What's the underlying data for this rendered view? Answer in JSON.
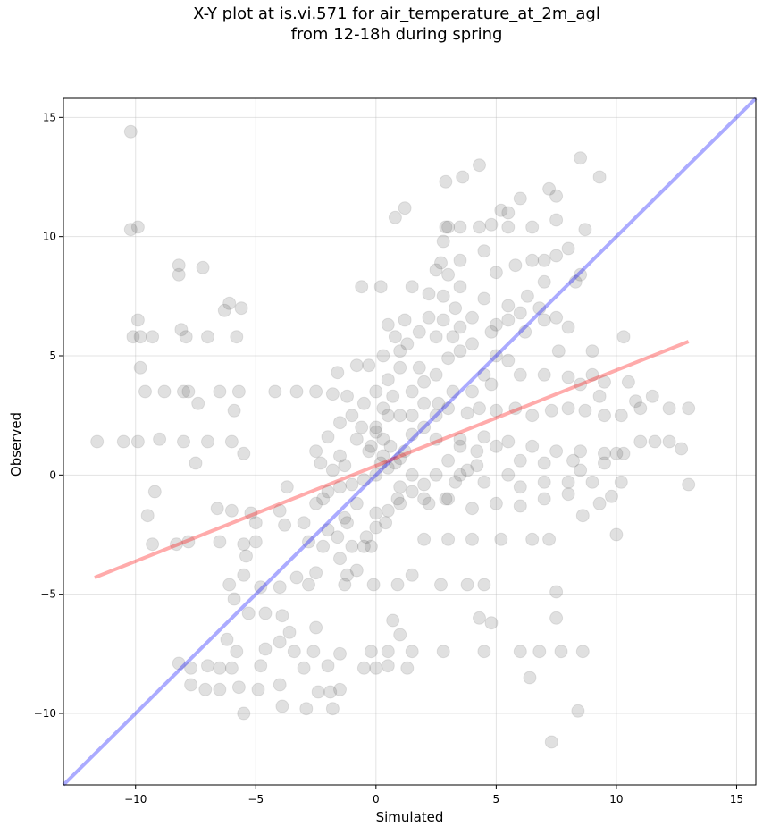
{
  "chart_data": {
    "type": "scatter",
    "title_line1": "X-Y plot at is.vi.571 for air_temperature_at_2m_agl",
    "title_line2": "from 12-18h during spring",
    "xlabel": "Simulated",
    "ylabel": "Observed",
    "xlim": [
      -13,
      15.8
    ],
    "ylim": [
      -13,
      15.8
    ],
    "xticks": [
      -10,
      -5,
      0,
      5,
      10,
      15
    ],
    "yticks": [
      -10,
      -5,
      0,
      5,
      10,
      15
    ],
    "xtick_labels": [
      "−10",
      "−5",
      "0",
      "5",
      "10",
      "15"
    ],
    "ytick_labels": [
      "−10",
      "−5",
      "0",
      "5",
      "10",
      "15"
    ],
    "grid": true,
    "point_color": "#404040",
    "identity_line": {
      "color": "#0000ff",
      "from": [
        -13,
        -13
      ],
      "to": [
        15.8,
        15.8
      ]
    },
    "regression_line": {
      "color": "#ff0000",
      "from": [
        -11.7,
        -4.3
      ],
      "to": [
        13.0,
        5.6
      ]
    },
    "points": [
      [
        -10.2,
        14.4
      ],
      [
        -10.2,
        10.3
      ],
      [
        -9.9,
        10.4
      ],
      [
        -9.9,
        6.5
      ],
      [
        -10.1,
        5.8
      ],
      [
        -9.8,
        5.8
      ],
      [
        -9.3,
        5.8
      ],
      [
        -9.8,
        4.5
      ],
      [
        -9.6,
        3.5
      ],
      [
        -8.8,
        3.5
      ],
      [
        -8.0,
        3.5
      ],
      [
        -7.8,
        3.5
      ],
      [
        -11.6,
        1.4
      ],
      [
        -10.5,
        1.4
      ],
      [
        -9.9,
        1.4
      ],
      [
        -9.0,
        1.5
      ],
      [
        -8.0,
        1.4
      ],
      [
        -7.0,
        1.4
      ],
      [
        -6.0,
        1.4
      ],
      [
        -5.5,
        0.9
      ],
      [
        -7.5,
        0.5
      ],
      [
        -9.5,
        -1.7
      ],
      [
        -9.2,
        -0.7
      ],
      [
        -8.2,
        8.8
      ],
      [
        -8.2,
        8.4
      ],
      [
        -7.2,
        8.7
      ],
      [
        -8.1,
        6.1
      ],
      [
        -6.3,
        6.9
      ],
      [
        -6.1,
        7.2
      ],
      [
        -5.6,
        7.0
      ],
      [
        -7.0,
        5.8
      ],
      [
        -7.9,
        5.8
      ],
      [
        -5.8,
        5.8
      ],
      [
        -6.5,
        3.5
      ],
      [
        -5.9,
        2.7
      ],
      [
        -5.7,
        3.5
      ],
      [
        -4.2,
        3.5
      ],
      [
        -3.3,
        3.5
      ],
      [
        -2.5,
        3.5
      ],
      [
        -7.4,
        3.0
      ],
      [
        -9.3,
        -2.9
      ],
      [
        -8.3,
        -2.9
      ],
      [
        -7.8,
        -2.8
      ],
      [
        -6.5,
        -2.8
      ],
      [
        -5.5,
        -2.9
      ],
      [
        -6.6,
        -1.4
      ],
      [
        -6.0,
        -1.5
      ],
      [
        -5.2,
        -1.6
      ],
      [
        -5.0,
        -2.0
      ],
      [
        -4.0,
        -1.5
      ],
      [
        -3.7,
        -0.5
      ],
      [
        -3.8,
        -2.1
      ],
      [
        -3.0,
        -2.0
      ],
      [
        -5.4,
        -3.4
      ],
      [
        -5.0,
        -2.8
      ],
      [
        -6.1,
        -4.6
      ],
      [
        -5.5,
        -4.2
      ],
      [
        -4.8,
        -4.7
      ],
      [
        -4.0,
        -4.7
      ],
      [
        -3.3,
        -4.3
      ],
      [
        -2.8,
        -4.6
      ],
      [
        -2.5,
        -4.1
      ],
      [
        -5.9,
        -5.2
      ],
      [
        -5.3,
        -5.8
      ],
      [
        -4.6,
        -5.8
      ],
      [
        -3.9,
        -5.9
      ],
      [
        -3.6,
        -6.6
      ],
      [
        -2.5,
        -6.4
      ],
      [
        -6.2,
        -6.9
      ],
      [
        -5.8,
        -7.4
      ],
      [
        -4.6,
        -7.3
      ],
      [
        -4.0,
        -7.0
      ],
      [
        -3.4,
        -7.4
      ],
      [
        -2.6,
        -7.4
      ],
      [
        -8.2,
        -7.9
      ],
      [
        -7.7,
        -8.1
      ],
      [
        -7.0,
        -8.0
      ],
      [
        -6.5,
        -8.1
      ],
      [
        -6.0,
        -8.1
      ],
      [
        -4.8,
        -8.0
      ],
      [
        -3.0,
        -8.1
      ],
      [
        -2.0,
        -8.0
      ],
      [
        -7.7,
        -8.8
      ],
      [
        -7.1,
        -9.0
      ],
      [
        -6.5,
        -9.0
      ],
      [
        -5.7,
        -8.9
      ],
      [
        -5.5,
        -10.0
      ],
      [
        -4.9,
        -9.0
      ],
      [
        -4.0,
        -8.8
      ],
      [
        -3.9,
        -9.7
      ],
      [
        -2.9,
        -9.8
      ],
      [
        -2.4,
        -9.1
      ],
      [
        -1.9,
        -9.1
      ],
      [
        -1.5,
        -9.0
      ],
      [
        -1.8,
        -9.8
      ],
      [
        -0.5,
        -8.1
      ],
      [
        0.0,
        -8.1
      ],
      [
        0.5,
        -8.0
      ],
      [
        1.3,
        -8.1
      ],
      [
        -1.5,
        -7.5
      ],
      [
        -0.2,
        -7.4
      ],
      [
        0.5,
        -7.4
      ],
      [
        1.5,
        -7.4
      ],
      [
        2.8,
        -7.4
      ],
      [
        4.5,
        -7.4
      ],
      [
        6.0,
        -7.4
      ],
      [
        6.8,
        -7.4
      ],
      [
        7.7,
        -7.4
      ],
      [
        8.6,
        -7.4
      ],
      [
        7.3,
        -11.2
      ],
      [
        8.4,
        -9.9
      ],
      [
        6.4,
        -8.5
      ],
      [
        7.5,
        -6.0
      ],
      [
        7.5,
        -4.9
      ],
      [
        6.5,
        -2.7
      ],
      [
        7.2,
        -2.7
      ],
      [
        5.2,
        -2.7
      ],
      [
        3.0,
        -2.7
      ],
      [
        2.0,
        -2.7
      ],
      [
        4.0,
        -2.7
      ],
      [
        1.5,
        -4.2
      ],
      [
        2.7,
        -4.6
      ],
      [
        3.8,
        -4.6
      ],
      [
        4.5,
        -4.6
      ],
      [
        0.9,
        -4.6
      ],
      [
        -0.1,
        -4.6
      ],
      [
        -1.3,
        -4.6
      ],
      [
        0.7,
        -6.1
      ],
      [
        1.0,
        -6.7
      ],
      [
        4.3,
        -6.0
      ],
      [
        4.8,
        -6.2
      ],
      [
        -2.0,
        -2.3
      ],
      [
        -1.6,
        -2.6
      ],
      [
        -1.2,
        -2.0
      ],
      [
        -1.0,
        -3.0
      ],
      [
        -0.4,
        -2.6
      ],
      [
        0.0,
        -1.6
      ],
      [
        -0.8,
        -1.2
      ],
      [
        -1.3,
        -1.8
      ],
      [
        -2.2,
        -1.0
      ],
      [
        -1.5,
        -0.5
      ],
      [
        -1.0,
        -0.4
      ],
      [
        -0.5,
        -0.2
      ],
      [
        0.0,
        0.0
      ],
      [
        0.2,
        0.5
      ],
      [
        0.5,
        0.3
      ],
      [
        0.8,
        0.5
      ],
      [
        1.0,
        0.7
      ],
      [
        1.2,
        1.0
      ],
      [
        0.6,
        1.2
      ],
      [
        0.3,
        1.5
      ],
      [
        0.0,
        2.0
      ],
      [
        0.5,
        2.5
      ],
      [
        1.0,
        2.5
      ],
      [
        1.5,
        2.5
      ],
      [
        2.0,
        2.0
      ],
      [
        2.5,
        2.5
      ],
      [
        3.0,
        2.8
      ],
      [
        1.5,
        3.5
      ],
      [
        2.0,
        3.9
      ],
      [
        2.5,
        4.2
      ],
      [
        3.0,
        4.9
      ],
      [
        3.5,
        5.2
      ],
      [
        2.5,
        5.8
      ],
      [
        3.5,
        6.2
      ],
      [
        4.0,
        6.6
      ],
      [
        3.5,
        7.9
      ],
      [
        2.8,
        7.5
      ],
      [
        2.2,
        7.6
      ],
      [
        1.5,
        7.9
      ],
      [
        0.2,
        7.9
      ],
      [
        -0.6,
        7.9
      ],
      [
        0.5,
        6.3
      ],
      [
        1.0,
        5.2
      ],
      [
        1.2,
        6.5
      ],
      [
        0.5,
        4.0
      ],
      [
        0.0,
        3.5
      ],
      [
        -0.5,
        3.0
      ],
      [
        -1.0,
        2.5
      ],
      [
        -1.5,
        2.2
      ],
      [
        -2.0,
        1.6
      ],
      [
        -2.5,
        1.0
      ],
      [
        -2.3,
        0.5
      ],
      [
        -1.3,
        0.4
      ],
      [
        -0.3,
        1.0
      ],
      [
        1.5,
        1.7
      ],
      [
        2.5,
        1.5
      ],
      [
        3.5,
        1.5
      ],
      [
        4.5,
        1.6
      ],
      [
        5.5,
        1.4
      ],
      [
        6.5,
        1.2
      ],
      [
        7.5,
        1.0
      ],
      [
        8.5,
        1.0
      ],
      [
        9.5,
        0.9
      ],
      [
        10.3,
        0.9
      ],
      [
        11.0,
        1.4
      ],
      [
        11.6,
        1.4
      ],
      [
        12.2,
        1.4
      ],
      [
        12.7,
        1.1
      ],
      [
        13.0,
        2.8
      ],
      [
        13.0,
        -0.4
      ],
      [
        12.2,
        2.8
      ],
      [
        11.5,
        3.3
      ],
      [
        10.8,
        3.1
      ],
      [
        10.2,
        2.5
      ],
      [
        9.5,
        2.5
      ],
      [
        8.7,
        2.7
      ],
      [
        8.0,
        2.8
      ],
      [
        7.3,
        2.7
      ],
      [
        6.5,
        2.5
      ],
      [
        5.8,
        2.8
      ],
      [
        5.0,
        2.7
      ],
      [
        4.3,
        2.8
      ],
      [
        3.8,
        2.6
      ],
      [
        4.8,
        3.8
      ],
      [
        6.0,
        4.2
      ],
      [
        7.0,
        4.2
      ],
      [
        8.0,
        4.1
      ],
      [
        9.0,
        4.2
      ],
      [
        10.3,
        5.8
      ],
      [
        10.5,
        3.9
      ],
      [
        9.3,
        3.3
      ],
      [
        8.5,
        3.8
      ],
      [
        7.6,
        5.2
      ],
      [
        7.0,
        6.5
      ],
      [
        6.2,
        6.0
      ],
      [
        5.0,
        6.3
      ],
      [
        5.5,
        7.1
      ],
      [
        6.3,
        7.5
      ],
      [
        7.0,
        8.1
      ],
      [
        8.3,
        8.1
      ],
      [
        8.5,
        8.4
      ],
      [
        7.5,
        9.2
      ],
      [
        8.0,
        9.5
      ],
      [
        8.7,
        10.3
      ],
      [
        7.5,
        10.7
      ],
      [
        6.5,
        10.4
      ],
      [
        5.5,
        10.4
      ],
      [
        4.8,
        10.5
      ],
      [
        4.3,
        10.4
      ],
      [
        3.5,
        10.4
      ],
      [
        3.0,
        10.4
      ],
      [
        2.8,
        9.8
      ],
      [
        2.7,
        8.9
      ],
      [
        3.5,
        9.0
      ],
      [
        4.5,
        9.4
      ],
      [
        5.0,
        8.5
      ],
      [
        5.8,
        8.8
      ],
      [
        6.5,
        9.0
      ],
      [
        7.0,
        9.0
      ],
      [
        8.5,
        13.3
      ],
      [
        9.3,
        12.5
      ],
      [
        7.2,
        12.0
      ],
      [
        7.5,
        11.7
      ],
      [
        6.0,
        11.6
      ],
      [
        5.5,
        11.0
      ],
      [
        5.2,
        11.1
      ],
      [
        4.3,
        13.0
      ],
      [
        3.6,
        12.5
      ],
      [
        2.9,
        12.3
      ],
      [
        2.9,
        10.4
      ],
      [
        1.2,
        11.2
      ],
      [
        0.8,
        10.8
      ],
      [
        2.5,
        8.6
      ],
      [
        3.0,
        8.4
      ],
      [
        3.3,
        7.0
      ],
      [
        4.5,
        7.4
      ],
      [
        5.0,
        5.0
      ],
      [
        5.5,
        4.8
      ],
      [
        4.5,
        4.2
      ],
      [
        4.0,
        3.5
      ],
      [
        3.2,
        3.5
      ],
      [
        2.6,
        3.0
      ],
      [
        2.0,
        3.0
      ],
      [
        1.8,
        4.5
      ],
      [
        1.0,
        4.5
      ],
      [
        0.7,
        3.3
      ],
      [
        0.3,
        2.8
      ],
      [
        0.0,
        1.8
      ],
      [
        -0.2,
        1.2
      ],
      [
        0.3,
        0.8
      ],
      [
        1.5,
        0.0
      ],
      [
        2.5,
        0.0
      ],
      [
        3.5,
        0.0
      ],
      [
        4.5,
        -0.3
      ],
      [
        5.5,
        0.0
      ],
      [
        6.0,
        -0.5
      ],
      [
        7.0,
        -0.3
      ],
      [
        8.0,
        -0.3
      ],
      [
        8.5,
        0.2
      ],
      [
        9.0,
        -0.3
      ],
      [
        9.8,
        -0.9
      ],
      [
        10.2,
        -0.3
      ],
      [
        10.0,
        -2.5
      ],
      [
        9.3,
        -1.2
      ],
      [
        8.6,
        -1.7
      ],
      [
        8.0,
        -0.8
      ],
      [
        7.0,
        -1.0
      ],
      [
        6.0,
        -1.3
      ],
      [
        5.0,
        -1.2
      ],
      [
        4.0,
        -1.4
      ],
      [
        3.0,
        -1.0
      ],
      [
        2.0,
        -1.0
      ],
      [
        1.0,
        -1.2
      ],
      [
        0.5,
        -1.5
      ],
      [
        0.0,
        -2.2
      ],
      [
        -0.5,
        -3.0
      ],
      [
        1.0,
        -0.5
      ],
      [
        2.0,
        -0.4
      ],
      [
        3.0,
        0.6
      ],
      [
        3.5,
        1.2
      ],
      [
        4.2,
        1.0
      ],
      [
        5.0,
        1.2
      ],
      [
        6.0,
        0.6
      ],
      [
        7.0,
        0.5
      ],
      [
        8.2,
        0.6
      ],
      [
        9.5,
        0.5
      ],
      [
        10.0,
        0.9
      ],
      [
        11.0,
        2.8
      ],
      [
        9.5,
        3.9
      ],
      [
        9.0,
        5.2
      ],
      [
        8.0,
        6.2
      ],
      [
        7.5,
        6.6
      ],
      [
        6.8,
        7.0
      ],
      [
        6.0,
        6.8
      ],
      [
        5.5,
        6.5
      ],
      [
        4.8,
        6.0
      ],
      [
        4.0,
        5.5
      ],
      [
        3.2,
        5.8
      ],
      [
        2.8,
        6.5
      ],
      [
        2.2,
        6.6
      ],
      [
        1.8,
        6.0
      ],
      [
        1.3,
        5.5
      ],
      [
        0.8,
        5.8
      ],
      [
        0.3,
        5.0
      ],
      [
        -0.3,
        4.6
      ],
      [
        -0.8,
        4.6
      ],
      [
        -1.6,
        4.3
      ],
      [
        -1.8,
        3.4
      ],
      [
        -1.2,
        3.3
      ],
      [
        -0.6,
        2.0
      ],
      [
        -0.8,
        1.5
      ],
      [
        -1.5,
        0.8
      ],
      [
        -1.8,
        0.2
      ],
      [
        -2.0,
        -0.7
      ],
      [
        -2.5,
        -1.2
      ],
      [
        -2.8,
        -2.8
      ],
      [
        -2.2,
        -3.0
      ],
      [
        -1.5,
        -3.5
      ],
      [
        -1.2,
        -4.2
      ],
      [
        -0.8,
        -4.0
      ],
      [
        -0.2,
        -3.0
      ],
      [
        0.4,
        -2.0
      ],
      [
        0.9,
        -1.0
      ],
      [
        1.5,
        -0.7
      ],
      [
        2.2,
        -1.2
      ],
      [
        2.9,
        -1.0
      ],
      [
        3.3,
        -0.3
      ],
      [
        3.8,
        0.2
      ],
      [
        4.2,
        0.4
      ]
    ]
  }
}
